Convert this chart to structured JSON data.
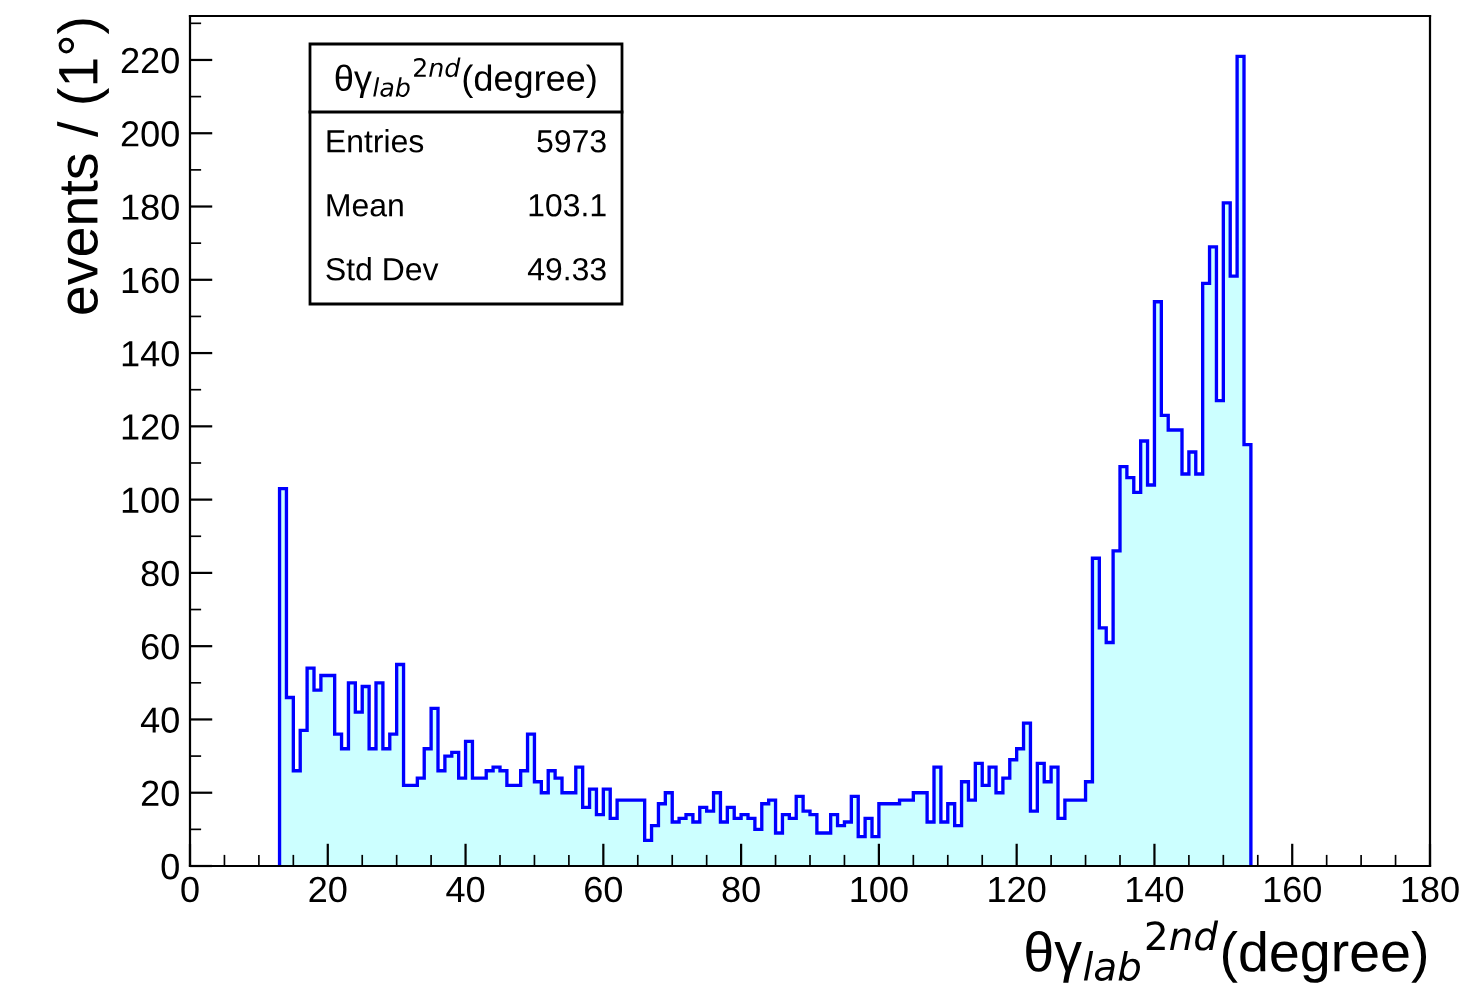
{
  "chart_data": {
    "type": "histogram",
    "title": "θγ$_{lab}$$^{2nd}$(degree)",
    "xlabel": "θγ$_{lab}$$^{2nd}$(degree)",
    "ylabel": "events / (1°)",
    "annotations": [
      "Entries",
      "5973",
      "Mean",
      "103.1",
      "Std Dev",
      "49.33"
    ],
    "bins": [
      13,
      14,
      15,
      16,
      17,
      18,
      19,
      20,
      21,
      22,
      23,
      24,
      25,
      26,
      27,
      28,
      29,
      30,
      31,
      32,
      33,
      34,
      35,
      36,
      37,
      38,
      39,
      40,
      41,
      42,
      43,
      44,
      45,
      46,
      47,
      48,
      49,
      50,
      51,
      52,
      53,
      54,
      55,
      56,
      57,
      58,
      59,
      60,
      61,
      62,
      63,
      64,
      65,
      66,
      67,
      68,
      69,
      70,
      71,
      72,
      73,
      74,
      75,
      76,
      77,
      78,
      79,
      80,
      81,
      82,
      83,
      84,
      85,
      86,
      87,
      88,
      89,
      90,
      91,
      92,
      93,
      94,
      95,
      96,
      97,
      98,
      99,
      100,
      101,
      102,
      103,
      104,
      105,
      106,
      107,
      108,
      109,
      110,
      111,
      112,
      113,
      114,
      115,
      116,
      117,
      118,
      119,
      120,
      121,
      122,
      123,
      124,
      125,
      126,
      127,
      128,
      129,
      130,
      131,
      132,
      133,
      134,
      135,
      136,
      137,
      138,
      139,
      140,
      141,
      142,
      143,
      144,
      145,
      146,
      147,
      148,
      149,
      150,
      151,
      152,
      153,
      154
    ],
    "values": [
      103,
      46,
      26,
      37,
      54,
      48,
      52,
      52,
      36,
      32,
      50,
      42,
      49,
      32,
      50,
      32,
      36,
      55,
      22,
      22,
      24,
      32,
      43,
      26,
      30,
      31,
      24,
      34,
      24,
      24,
      26,
      27,
      26,
      22,
      22,
      26,
      36,
      23,
      20,
      26,
      24,
      20,
      20,
      27,
      16,
      21,
      14,
      21,
      13,
      18,
      18,
      18,
      18,
      7,
      11,
      17,
      20,
      12,
      13,
      14,
      12,
      16,
      15,
      20,
      12,
      16,
      13,
      14,
      13,
      10,
      17,
      18,
      9,
      14,
      13,
      19,
      15,
      14,
      9,
      9,
      14,
      11,
      12,
      19,
      8,
      13,
      8,
      17,
      17,
      17,
      18,
      18,
      20,
      20,
      12,
      27,
      12,
      17,
      11,
      23,
      18,
      28,
      22,
      27,
      20,
      24,
      29,
      32,
      39,
      15,
      28,
      23,
      27,
      13,
      18,
      18,
      18,
      23,
      84,
      65,
      61,
      86,
      109,
      106,
      102,
      116,
      104,
      154,
      123,
      119,
      119,
      107,
      113,
      107,
      159,
      169,
      127,
      181,
      161,
      221,
      115
    ],
    "color": "#0000ff",
    "xlim": [
      0,
      180
    ],
    "xticks": [
      0,
      20,
      40,
      60,
      80,
      100,
      120,
      140,
      160,
      180
    ],
    "ylim": [
      0,
      232
    ],
    "yticks": [
      0,
      20,
      40,
      60,
      80,
      100,
      120,
      140,
      160,
      180,
      200,
      220
    ],
    "grid": false,
    "legend": false
  }
}
